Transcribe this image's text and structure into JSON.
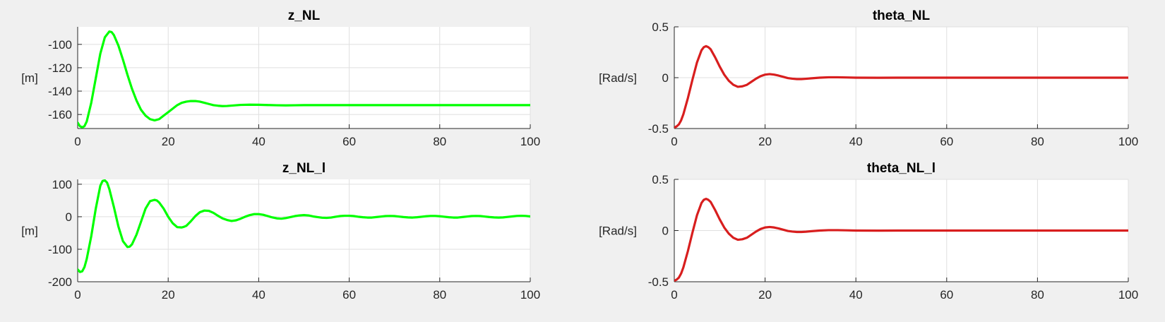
{
  "chart_data": [
    {
      "type": "line",
      "title": "z_NL",
      "ylabel": "[m]",
      "xlim": [
        0,
        100
      ],
      "ylim": [
        -172,
        -85
      ],
      "xticks": [
        0,
        20,
        40,
        60,
        80,
        100
      ],
      "yticks": [
        -160,
        -140,
        -120,
        -100
      ],
      "grid": true,
      "series": [
        {
          "color": "#00ff00",
          "x": [
            0,
            0.5,
            1,
            1.5,
            2,
            3,
            4,
            5,
            6,
            7,
            7.5,
            8,
            9,
            10,
            11,
            12,
            13,
            14,
            15,
            16,
            17,
            18,
            19,
            20,
            21,
            22,
            23,
            24,
            25,
            26,
            27,
            28,
            29,
            30,
            31,
            32,
            33,
            34,
            35,
            36,
            38,
            40,
            42,
            44,
            46,
            48,
            50,
            55,
            60,
            70,
            80,
            90,
            100
          ],
          "y": [
            -167,
            -170,
            -171,
            -170,
            -166,
            -150,
            -129,
            -108,
            -94,
            -89,
            -89.5,
            -92,
            -101,
            -113,
            -126,
            -138,
            -148,
            -156,
            -161,
            -164,
            -165,
            -164,
            -161,
            -158,
            -155,
            -152,
            -150,
            -149,
            -148.5,
            -148.5,
            -149,
            -150,
            -151,
            -152,
            -152.5,
            -152.8,
            -152.7,
            -152.4,
            -152.1,
            -151.8,
            -151.6,
            -151.7,
            -151.9,
            -152.1,
            -152.2,
            -152.1,
            -152,
            -152,
            -152,
            -152,
            -152,
            -152,
            -152
          ]
        }
      ]
    },
    {
      "type": "line",
      "title": "theta_NL",
      "ylabel": "[Rad/s]",
      "xlim": [
        0,
        100
      ],
      "ylim": [
        -0.5,
        0.5
      ],
      "xticks": [
        0,
        20,
        40,
        60,
        80,
        100
      ],
      "yticks": [
        -0.5,
        0,
        0.5
      ],
      "grid": true,
      "series": [
        {
          "color": "#d81e1e",
          "x": [
            0,
            0.5,
            1,
            1.5,
            2,
            3,
            4,
            5,
            6,
            6.5,
            7,
            7.5,
            8,
            9,
            10,
            11,
            12,
            13,
            14,
            15,
            16,
            17,
            18,
            19,
            20,
            21,
            22,
            23,
            24,
            25,
            26,
            27,
            28,
            29,
            30,
            32,
            34,
            36,
            38,
            40,
            45,
            50,
            60,
            70,
            80,
            90,
            100
          ],
          "y": [
            -0.49,
            -0.48,
            -0.46,
            -0.42,
            -0.36,
            -0.2,
            -0.02,
            0.15,
            0.27,
            0.3,
            0.31,
            0.3,
            0.28,
            0.2,
            0.11,
            0.03,
            -0.03,
            -0.07,
            -0.09,
            -0.085,
            -0.07,
            -0.04,
            -0.01,
            0.015,
            0.03,
            0.035,
            0.03,
            0.02,
            0.008,
            -0.004,
            -0.01,
            -0.014,
            -0.014,
            -0.011,
            -0.007,
            0.0,
            0.004,
            0.004,
            0.002,
            0.0,
            -0.001,
            0.0,
            0.0,
            0.0,
            0.0,
            0.0,
            0.0
          ]
        }
      ]
    },
    {
      "type": "line",
      "title": "z_NL_l",
      "ylabel": "[m]",
      "xlim": [
        0,
        100
      ],
      "ylim": [
        -200,
        115
      ],
      "xticks": [
        0,
        20,
        40,
        60,
        80,
        100
      ],
      "yticks": [
        -200,
        -100,
        0,
        100
      ],
      "grid": true,
      "series": [
        {
          "color": "#00ff00",
          "x": [
            0,
            0.5,
            1,
            1.5,
            2,
            3,
            4,
            5,
            5.5,
            6,
            6.5,
            7,
            8,
            9,
            10,
            11,
            11.5,
            12,
            13,
            14,
            15,
            16,
            17,
            17.5,
            18,
            19,
            20,
            21,
            22,
            23,
            23.5,
            24,
            25,
            26,
            27,
            28,
            29,
            30,
            31,
            32,
            33,
            34,
            35,
            36,
            37,
            38,
            39,
            40,
            41,
            42,
            43,
            44,
            45,
            46,
            47,
            48,
            49,
            50,
            51,
            52,
            53,
            54,
            55,
            56,
            57,
            58,
            59,
            60,
            61,
            62,
            63,
            64,
            65,
            66,
            67,
            68,
            69,
            70,
            71,
            72,
            73,
            74,
            75,
            76,
            77,
            78,
            79,
            80,
            81,
            82,
            83,
            84,
            85,
            86,
            87,
            88,
            89,
            90,
            91,
            92,
            93,
            94,
            95,
            96,
            97,
            98,
            99,
            100
          ],
          "y": [
            -162,
            -170,
            -168,
            -155,
            -130,
            -60,
            25,
            95,
            110,
            112,
            105,
            85,
            30,
            -30,
            -75,
            -93,
            -92,
            -85,
            -55,
            -15,
            25,
            48,
            52,
            50,
            44,
            25,
            0,
            -20,
            -32,
            -33,
            -31,
            -28,
            -14,
            2,
            14,
            19,
            18,
            12,
            3,
            -5,
            -10,
            -13,
            -11,
            -6,
            0,
            5,
            8,
            8,
            6,
            2,
            -2,
            -5,
            -6,
            -4,
            -1,
            2,
            4,
            5,
            4,
            1,
            -1,
            -3,
            -3.5,
            -2.5,
            0,
            2,
            3,
            3,
            2,
            0,
            -1.5,
            -2.5,
            -2.5,
            -1,
            0.5,
            2,
            2.5,
            2,
            0.5,
            -1,
            -2,
            -2.5,
            -1.5,
            0,
            1.5,
            2.5,
            2.5,
            1.5,
            0,
            -1.5,
            -2.5,
            -2.5,
            -1,
            0.5,
            2,
            2.5,
            2,
            0.5,
            -1,
            -2,
            -2.5,
            -2,
            -0.5,
            1,
            2.5,
            3,
            2.5,
            1
          ]
        }
      ]
    },
    {
      "type": "line",
      "title": "theta_NL_l",
      "ylabel": "[Rad/s]",
      "xlim": [
        0,
        100
      ],
      "ylim": [
        -0.5,
        0.5
      ],
      "xticks": [
        0,
        20,
        40,
        60,
        80,
        100
      ],
      "yticks": [
        -0.5,
        0,
        0.5
      ],
      "grid": true,
      "series": [
        {
          "color": "#d81e1e",
          "x": [
            0,
            0.5,
            1,
            1.5,
            2,
            3,
            4,
            5,
            6,
            6.5,
            7,
            7.5,
            8,
            9,
            10,
            11,
            12,
            13,
            14,
            15,
            16,
            17,
            18,
            19,
            20,
            21,
            22,
            23,
            24,
            25,
            26,
            27,
            28,
            29,
            30,
            32,
            34,
            36,
            38,
            40,
            45,
            50,
            60,
            70,
            80,
            90,
            100
          ],
          "y": [
            -0.49,
            -0.48,
            -0.46,
            -0.42,
            -0.36,
            -0.2,
            -0.02,
            0.15,
            0.27,
            0.3,
            0.31,
            0.3,
            0.28,
            0.2,
            0.11,
            0.03,
            -0.03,
            -0.07,
            -0.09,
            -0.085,
            -0.07,
            -0.04,
            -0.01,
            0.015,
            0.03,
            0.035,
            0.03,
            0.02,
            0.008,
            -0.004,
            -0.01,
            -0.014,
            -0.014,
            -0.011,
            -0.007,
            0.0,
            0.004,
            0.004,
            0.002,
            0.0,
            -0.001,
            0.0,
            0.0,
            0.0,
            0.0,
            0.0,
            0.0
          ]
        }
      ]
    }
  ]
}
